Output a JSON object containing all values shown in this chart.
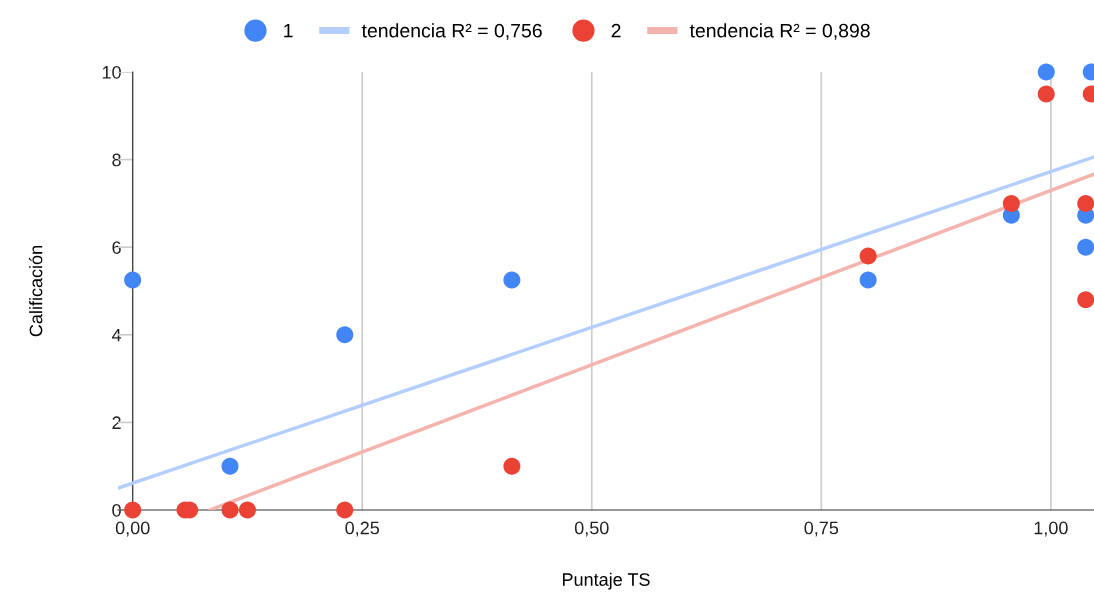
{
  "chart_data": {
    "type": "scatter",
    "xlabel": "Puntaje TS",
    "ylabel": "Calificación",
    "xlim": [
      -0.016,
      1.047
    ],
    "ylim": [
      0,
      10
    ],
    "xticks": [
      {
        "value": 0,
        "label": "0,00"
      },
      {
        "value": 0.25,
        "label": "0,25"
      },
      {
        "value": 0.5,
        "label": "0,50"
      },
      {
        "value": 0.75,
        "label": "0,75"
      },
      {
        "value": 1,
        "label": "1,00"
      }
    ],
    "yticks": [
      0,
      2,
      4,
      6,
      8,
      10
    ],
    "grid": "x",
    "legend": "top",
    "series": [
      {
        "name": "1",
        "marker": "circle",
        "color": "#4285f4",
        "x": [
          0,
          0.106,
          0.231,
          0.413,
          0.801,
          0.957,
          0.995,
          1.038,
          1.038,
          1.044
        ],
        "values": [
          5.25,
          1.0,
          4.0,
          5.25,
          5.25,
          6.73,
          10,
          6.73,
          6.0,
          10
        ]
      },
      {
        "name": "tendencia R² = 0,756",
        "type": "line",
        "marker": "none",
        "color": "#b3cefb",
        "x": [
          -0.016,
          1.047
        ],
        "values": [
          0.5,
          8.06
        ]
      },
      {
        "name": "2",
        "marker": "circle",
        "color": "#ea4335",
        "x": [
          0,
          0.057,
          0.062,
          0.106,
          0.125,
          0.231,
          0.413,
          0.801,
          0.957,
          0.995,
          1.038,
          1.038,
          1.044
        ],
        "values": [
          0,
          0,
          0,
          0,
          0,
          0,
          1.0,
          5.8,
          7.0,
          9.5,
          7.0,
          4.8,
          9.5
        ]
      },
      {
        "name": "tendencia R² = 0,898",
        "type": "line",
        "marker": "none",
        "color": "#f5b3ad",
        "x": [
          0.084,
          1.047
        ],
        "values": [
          0,
          7.67
        ]
      }
    ]
  }
}
